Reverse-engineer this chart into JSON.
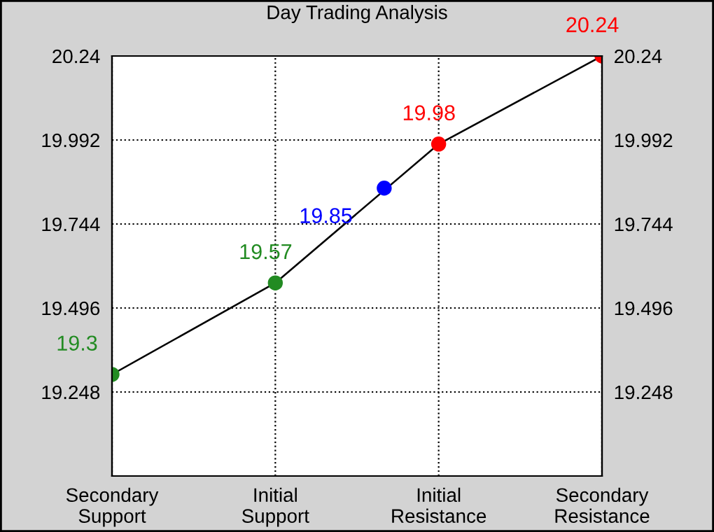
{
  "chart_data": {
    "type": "line",
    "title": "Day Trading Analysis",
    "categories": [
      "Secondary\nSupport",
      null,
      null,
      "Initial\nSupport",
      null,
      null,
      "Initial\nResistance",
      null,
      null,
      "Secondary\nResistance"
    ],
    "ylim": [
      19.0,
      20.24
    ],
    "yticks": [
      19.248,
      19.496,
      19.744,
      19.992,
      20.24
    ],
    "y2lim": [
      19.0,
      20.24
    ],
    "y2ticks": [
      19.248,
      19.496,
      19.744,
      19.992,
      20.24
    ],
    "grid": true,
    "data_labels": true,
    "marker": "circle",
    "series": [
      {
        "values": [
          19.3,
          null,
          null,
          19.57,
          null,
          null,
          19.98,
          null,
          null,
          20.24
        ],
        "color": "#000000",
        "colors": [
          "#228b22",
          null,
          null,
          "#228b22",
          null,
          null,
          "#ff0000",
          null,
          null,
          "#ff0000"
        ]
      },
      {
        "type": "scatter",
        "values": [
          null,
          null,
          null,
          null,
          null,
          19.85,
          null,
          null,
          null,
          null
        ],
        "color": "#0000ff"
      }
    ]
  }
}
